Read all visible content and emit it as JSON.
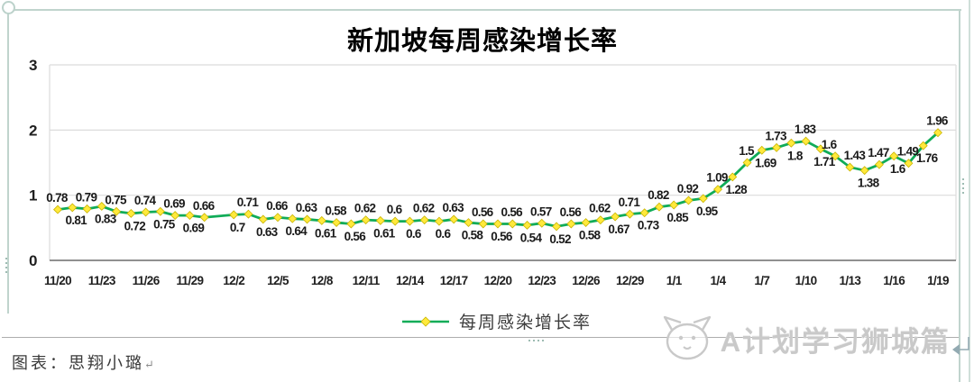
{
  "page": {
    "footer": "图表：思翔小璐",
    "footer_mark": "↵",
    "watermark": "A计划学习狮城篇"
  },
  "chart_data": {
    "type": "line",
    "title": "新加坡每周感染增长率",
    "series_name": "每周感染增长率",
    "legend_position": "bottom",
    "grid": true,
    "ylim": [
      0,
      3
    ],
    "yticks": [
      0,
      1,
      2,
      3
    ],
    "x_axis_type": "daily dates, tick every 3 days",
    "x_tick_labels": [
      "11/20",
      "11/23",
      "11/26",
      "11/29",
      "12/2",
      "12/5",
      "12/8",
      "12/11",
      "12/14",
      "12/17",
      "12/20",
      "12/23",
      "12/26",
      "12/29",
      "1/1",
      "1/4",
      "1/7",
      "1/10",
      "1/13",
      "1/16",
      "1/19"
    ],
    "colors": {
      "line": "#10ac58",
      "marker_fill": "#ffe93c",
      "marker_stroke": "#c9b400",
      "grid": "#dcdcdc",
      "axis": "#808080",
      "selection_frame": "#c0d4cb",
      "watermark": "#c9c9c9"
    },
    "points": [
      {
        "date": "11/20",
        "day": 0,
        "value": 0.78,
        "label_side": "above"
      },
      {
        "date": "11/21",
        "day": 1,
        "value": 0.81,
        "label_side": "below"
      },
      {
        "date": "11/22",
        "day": 2,
        "value": 0.79,
        "label_side": "above"
      },
      {
        "date": "11/23",
        "day": 3,
        "value": 0.83,
        "label_side": "below"
      },
      {
        "date": "11/24",
        "day": 4,
        "value": 0.75,
        "label_side": "above"
      },
      {
        "date": "11/25",
        "day": 5,
        "value": 0.72,
        "label_side": "below"
      },
      {
        "date": "11/26",
        "day": 6,
        "value": 0.74,
        "label_side": "above"
      },
      {
        "date": "11/27",
        "day": 7,
        "value": 0.75,
        "label_side": "below"
      },
      {
        "date": "11/28",
        "day": 8,
        "value": 0.69,
        "label_side": "above"
      },
      {
        "date": "11/29",
        "day": 9,
        "value": 0.69,
        "label_side": "below"
      },
      {
        "date": "11/30",
        "day": 10,
        "value": 0.66,
        "label_side": "above"
      },
      {
        "date": "12/2",
        "day": 12,
        "value": 0.7,
        "label_side": "below"
      },
      {
        "date": "12/3",
        "day": 13,
        "value": 0.71,
        "label_side": "above"
      },
      {
        "date": "12/4",
        "day": 14,
        "value": 0.63,
        "label_side": "below"
      },
      {
        "date": "12/5",
        "day": 15,
        "value": 0.66,
        "label_side": "above"
      },
      {
        "date": "12/6",
        "day": 16,
        "value": 0.64,
        "label_side": "below"
      },
      {
        "date": "12/7",
        "day": 17,
        "value": 0.63,
        "label_side": "above"
      },
      {
        "date": "12/8",
        "day": 18,
        "value": 0.61,
        "label_side": "below"
      },
      {
        "date": "12/9",
        "day": 19,
        "value": 0.58,
        "label_side": "above"
      },
      {
        "date": "12/10",
        "day": 20,
        "value": 0.56,
        "label_side": "below"
      },
      {
        "date": "12/11",
        "day": 21,
        "value": 0.62,
        "label_side": "above"
      },
      {
        "date": "12/12",
        "day": 22,
        "value": 0.61,
        "label_side": "below"
      },
      {
        "date": "12/13",
        "day": 23,
        "value": 0.6,
        "label_side": "above"
      },
      {
        "date": "12/14",
        "day": 24,
        "value": 0.6,
        "label_side": "below"
      },
      {
        "date": "12/15",
        "day": 25,
        "value": 0.62,
        "label_side": "above"
      },
      {
        "date": "12/16",
        "day": 26,
        "value": 0.6,
        "label_side": "below"
      },
      {
        "date": "12/17",
        "day": 27,
        "value": 0.63,
        "label_side": "above"
      },
      {
        "date": "12/18",
        "day": 28,
        "value": 0.58,
        "label_side": "below"
      },
      {
        "date": "12/19",
        "day": 29,
        "value": 0.56,
        "label_side": "above"
      },
      {
        "date": "12/20",
        "day": 30,
        "value": 0.56,
        "label_side": "below"
      },
      {
        "date": "12/21",
        "day": 31,
        "value": 0.56,
        "label_side": "above"
      },
      {
        "date": "12/22",
        "day": 32,
        "value": 0.54,
        "label_side": "below"
      },
      {
        "date": "12/23",
        "day": 33,
        "value": 0.57,
        "label_side": "above"
      },
      {
        "date": "12/24",
        "day": 34,
        "value": 0.52,
        "label_side": "below"
      },
      {
        "date": "12/25",
        "day": 35,
        "value": 0.56,
        "label_side": "above"
      },
      {
        "date": "12/26",
        "day": 36,
        "value": 0.58,
        "label_side": "below"
      },
      {
        "date": "12/27",
        "day": 37,
        "value": 0.62,
        "label_side": "above"
      },
      {
        "date": "12/28",
        "day": 38,
        "value": 0.67,
        "label_side": "below"
      },
      {
        "date": "12/29",
        "day": 39,
        "value": 0.71,
        "label_side": "above"
      },
      {
        "date": "12/30",
        "day": 40,
        "value": 0.73,
        "label_side": "below"
      },
      {
        "date": "12/31",
        "day": 41,
        "value": 0.82,
        "label_side": "above"
      },
      {
        "date": "1/1",
        "day": 42,
        "value": 0.85,
        "label_side": "below"
      },
      {
        "date": "1/2",
        "day": 43,
        "value": 0.92,
        "label_side": "above"
      },
      {
        "date": "1/3",
        "day": 44,
        "value": 0.95,
        "label_side": "below"
      },
      {
        "date": "1/4",
        "day": 45,
        "value": 1.09,
        "label_side": "above"
      },
      {
        "date": "1/5",
        "day": 46,
        "value": 1.28,
        "label_side": "below"
      },
      {
        "date": "1/6",
        "day": 47,
        "value": 1.5,
        "label_side": "above"
      },
      {
        "date": "1/7",
        "day": 48,
        "value": 1.69,
        "label_side": "below"
      },
      {
        "date": "1/8",
        "day": 49,
        "value": 1.73,
        "label_side": "above"
      },
      {
        "date": "1/9",
        "day": 50,
        "value": 1.8,
        "label_side": "below"
      },
      {
        "date": "1/10",
        "day": 51,
        "value": 1.83,
        "label_side": "above"
      },
      {
        "date": "1/11",
        "day": 52,
        "value": 1.71,
        "label_side": "below"
      },
      {
        "date": "1/12",
        "day": 53,
        "value": 1.6,
        "label_side": "above"
      },
      {
        "date": "1/13",
        "day": 54,
        "value": 1.43,
        "label_side": "above"
      },
      {
        "date": "1/14",
        "day": 55,
        "value": 1.38,
        "label_side": "below"
      },
      {
        "date": "1/15",
        "day": 56,
        "value": 1.47,
        "label_side": "above"
      },
      {
        "date": "1/16",
        "day": 57,
        "value": 1.6,
        "label_side": "below"
      },
      {
        "date": "1/17",
        "day": 58,
        "value": 1.49,
        "label_side": "above"
      },
      {
        "date": "1/18",
        "day": 59,
        "value": 1.76,
        "label_side": "below"
      },
      {
        "date": "1/19",
        "day": 60,
        "value": 1.96,
        "label_side": "above"
      }
    ]
  }
}
